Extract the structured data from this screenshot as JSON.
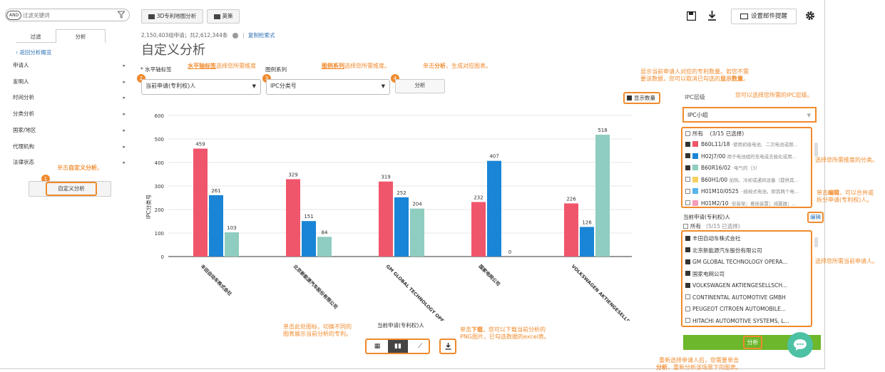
{
  "sidebar": {
    "and_badge": "AND",
    "search_placeholder": "过滤关键词",
    "tabs": [
      "过滤",
      "分析"
    ],
    "back_link": "返回分析概览",
    "items": [
      "申请人",
      "发明人",
      "时间分析",
      "分类分析",
      "国家/地区",
      "代理机构",
      "法律状态"
    ],
    "custom_button": "自定义分析",
    "anno_custom": "单击自定义分析。",
    "anno_custom_bold": "自定义分析"
  },
  "toolbar": {
    "map_button": "3D专利地图分析",
    "insight_button": "英策",
    "email_button": "设置邮件提醒"
  },
  "header": {
    "stats": "2,150,403组申请；共2,612,344条",
    "copy_link": "复制检索式",
    "title": "自定义分析"
  },
  "controls": {
    "x_label": "* 水平轴标签",
    "series_label": "图例系列",
    "x_value": "当前申请(专利权)人",
    "series_value": "IPC分类号",
    "analyze_button": "分析",
    "show_count": "显示数量",
    "anno_x_pre": "水平轴标签",
    "anno_x_post": "选择您所需维度",
    "anno_series_pre": "图例系列",
    "anno_series_post": "选择您所需维度。",
    "anno_analyze_a": "单击",
    "anno_analyze_b": "分析",
    "anno_analyze_c": "，生成对应图表。",
    "anno_count_1": "显示当前申请人对应的专利数量。若您不需",
    "anno_count_2a": "要该数据，您可以取消已勾选的",
    "anno_count_2b": "显示数量",
    "anno_count_2c": "。",
    "steps": [
      "1",
      "2",
      "3",
      "4"
    ]
  },
  "chart_data": {
    "type": "bar",
    "ylabel": "IPC分类号",
    "xlabel": "当前申请(专利权)人",
    "ylim": [
      0,
      600
    ],
    "yticks": [
      0,
      100,
      200,
      300,
      400,
      500,
      600
    ],
    "categories": [
      "丰田自动车株式会社",
      "北京新能源汽车股份有限公司",
      "GM GLOBAL TECHNOLOGY OPERATIONS LLC",
      "国家电网公司",
      "VOLKSWAGEN AKTIENGESELLSCHAFT"
    ],
    "series": [
      {
        "name": "B60L11/18",
        "color": "#f0566b",
        "values": [
          459,
          329,
          319,
          232,
          226
        ]
      },
      {
        "name": "H02J7/00",
        "color": "#1a85d6",
        "values": [
          261,
          151,
          252,
          407,
          126
        ]
      },
      {
        "name": "B60R16/02",
        "color": "#8ecdc0",
        "values": [
          103,
          84,
          204,
          0,
          518
        ]
      }
    ],
    "grid": true
  },
  "view_switch": {
    "anno_1": "单击此处图标，切换不同的",
    "anno_2": "图表展示当前分析的专利。",
    "anno_dl_1a": "单击",
    "anno_dl_1b": "下载",
    "anno_dl_1c": "，您可以下载当前分析的",
    "anno_dl_2": "PNG图片，已勾选数据的excel表。"
  },
  "right_panel": {
    "ipc_level_label": "IPC层级",
    "ipc_level_anno": "您可以选择您所需的IPC层级。",
    "ipc_level_value": "IPC小组",
    "ipc_all": "所有",
    "ipc_all_count": "(3/15 已选择)",
    "ipc_items": [
      {
        "code": "B60L11/18",
        "desc": "·使用初级电池、二次电池或燃...",
        "color": "#f0566b",
        "checked": true
      },
      {
        "code": "H02J7/00",
        "desc": "用于电池组的充电或去极化或用...",
        "color": "#1a85d6",
        "checked": true
      },
      {
        "code": "B60R16/02",
        "desc": "·电气的｛3｝",
        "color": "#8ecdc0",
        "checked": true
      },
      {
        "code": "B60H1/00",
        "desc": "加热、冷却或通风设备（提供其...",
        "color": "#f7d160",
        "checked": false
      },
      {
        "code": "H01M10/0525",
        "desc": "··摇椅式电池，即其两个电...",
        "color": "#58b4ea",
        "checked": false
      },
      {
        "code": "H01M2/10",
        "desc": "·安装架；悬挂装置；减震器；...",
        "color": "#f59cb8",
        "checked": false
      }
    ],
    "ipc_anno": "选择您所需维度的分类。",
    "applicant_label": "当前申请(专利权)人",
    "edit_link": "编辑",
    "edit_anno_1a": "单击",
    "edit_anno_1b": "编辑",
    "edit_anno_1c": "，可以合并或",
    "edit_anno_2": "拆分申请(专利权)人。",
    "app_all": "所有",
    "app_all_count": "(5/15 已选择)",
    "applicants": [
      {
        "name": "丰田自动车株式会社",
        "checked": true
      },
      {
        "name": "北京新能源汽车股份有限公司",
        "checked": true
      },
      {
        "name": "GM GLOBAL TECHNOLOGY OPERA...",
        "checked": true
      },
      {
        "name": "国家电网公司",
        "checked": true
      },
      {
        "name": "VOLKSWAGEN AKTIENGESELLSCH...",
        "checked": true
      },
      {
        "name": "CONTINENTAL AUTOMOTIVE GMBH",
        "checked": false
      },
      {
        "name": "PEUGEOT CITROEN AUTOMOBILE...",
        "checked": false
      },
      {
        "name": "HITACHI AUTOMOTIVE SYSTEMS, L...",
        "checked": false
      }
    ],
    "app_anno": "选择您所需当前申请人。",
    "analyze_button": "分析",
    "bottom_anno_1": "重新选择申请人后，您需要单击",
    "bottom_anno_2a": "分析",
    "bottom_anno_2b": "，重新分析该场景下的图表。"
  }
}
